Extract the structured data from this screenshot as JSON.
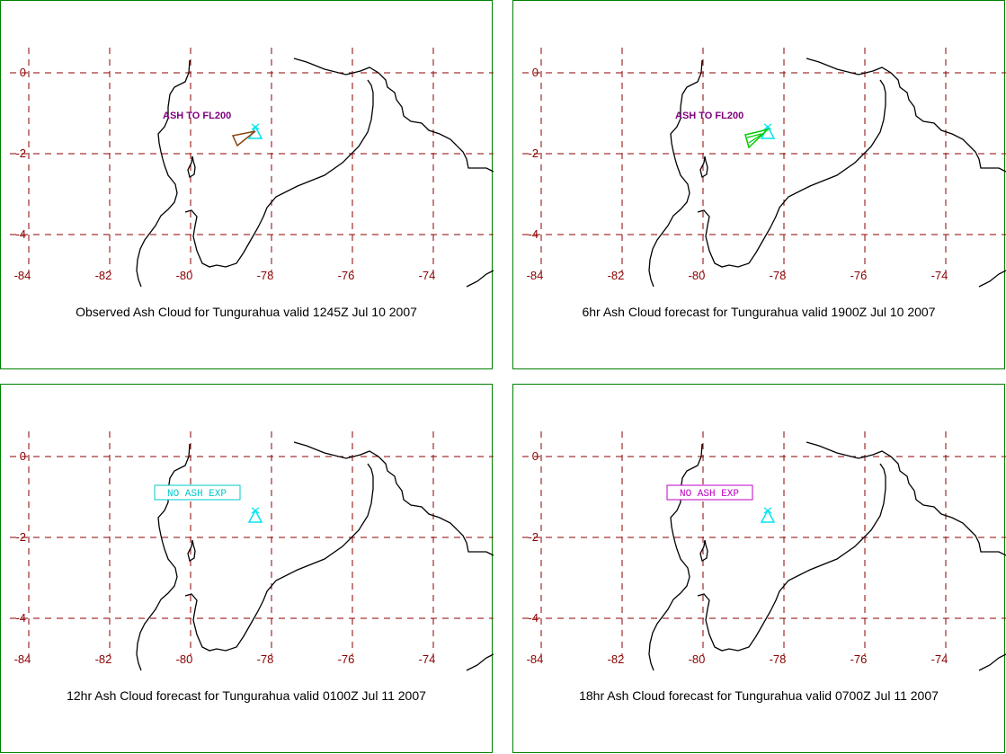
{
  "panels": [
    {
      "caption": "Observed Ash Cloud for Tungurahua valid 1245Z Jul 10 2007",
      "annotation": "ASH TO FL200",
      "annotation_type": "label",
      "ash_polygon_color": "#8b4513",
      "volcano_color": "#00e5ee"
    },
    {
      "caption": "6hr Ash Cloud forecast for Tungurahua valid 1900Z Jul 10 2007",
      "annotation": "ASH TO FL200",
      "annotation_type": "label",
      "ash_polygon_color": "#00cc00",
      "volcano_color": "#00e5ee"
    },
    {
      "caption": "12hr Ash Cloud forecast for Tungurahua valid 0100Z Jul 11 2007",
      "annotation": "NO ASH EXP",
      "annotation_type": "box",
      "box_color": "#00c8c8",
      "volcano_color": "#00e5ee"
    },
    {
      "caption": "18hr Ash Cloud forecast for Tungurahua valid 0700Z Jul 11 2007",
      "annotation": "NO ASH EXP",
      "annotation_type": "box",
      "box_color": "#c000c0",
      "volcano_color": "#00e5ee"
    }
  ],
  "map": {
    "lon_ticks": [
      "-84",
      "-82",
      "-80",
      "-78",
      "-76",
      "-74"
    ],
    "lat_ticks": [
      "0",
      "-2",
      "-4"
    ],
    "grid_color": "#8b0000",
    "coast_color": "#000000",
    "border_color": "#008000"
  }
}
